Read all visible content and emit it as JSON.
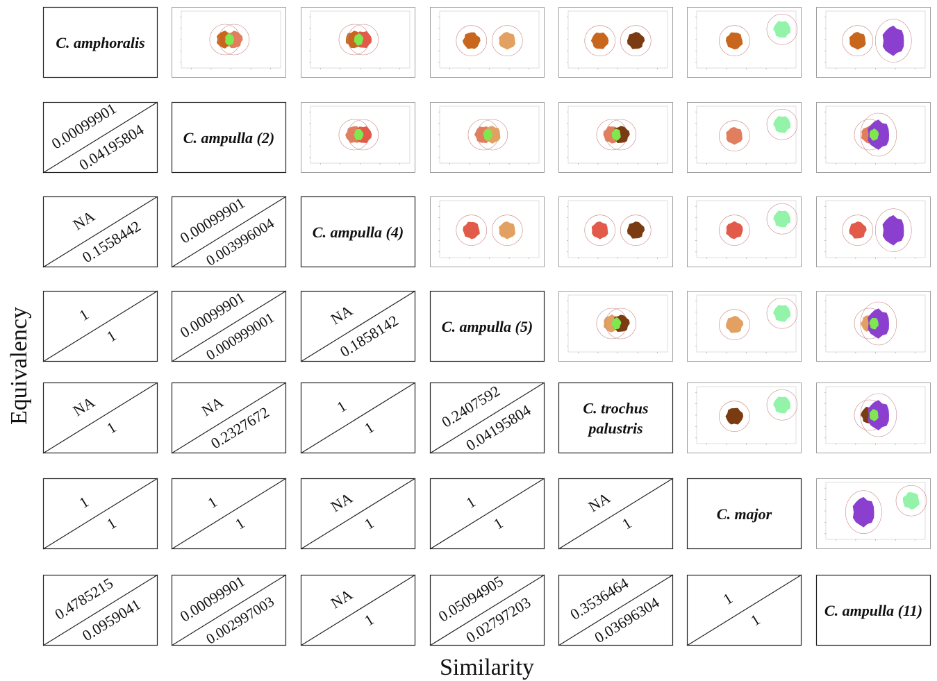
{
  "axes": {
    "y_label": "Equivalency",
    "x_label": "Similarity"
  },
  "chart_data": {
    "type": "table",
    "layout": "pairwise matrix: species names on the diagonal, niche-overlap plots in the upper triangle, equivalency/similarity values in the lower triangle",
    "species": [
      [
        "C. amphoralis"
      ],
      [
        "C. ampulla (2)"
      ],
      [
        "C. ampulla (4)"
      ],
      [
        "C. ampulla (5)"
      ],
      [
        "C. trochus",
        "palustris"
      ],
      [
        "C. major"
      ],
      [
        "C. ampulla (11)"
      ]
    ],
    "colors": {
      "species": [
        "#c8661e",
        "#e07e5e",
        "#e25a4a",
        "#e2a062",
        "#7a3b12",
        "#93f3a8",
        "#8a3fcf"
      ],
      "overlap": "#7ee84e"
    },
    "pairs": [
      {
        "row": 1,
        "col": 0,
        "equivalency": "0.00099901",
        "similarity": "0.04195804"
      },
      {
        "row": 2,
        "col": 0,
        "equivalency": "NA",
        "similarity": "0.1558442"
      },
      {
        "row": 2,
        "col": 1,
        "equivalency": "0.00099901",
        "similarity": "0.003996004"
      },
      {
        "row": 3,
        "col": 0,
        "equivalency": "1",
        "similarity": "1"
      },
      {
        "row": 3,
        "col": 1,
        "equivalency": "0.00099901",
        "similarity": "0.000999001"
      },
      {
        "row": 3,
        "col": 2,
        "equivalency": "NA",
        "similarity": "0.1858142"
      },
      {
        "row": 4,
        "col": 0,
        "equivalency": "NA",
        "similarity": "1"
      },
      {
        "row": 4,
        "col": 1,
        "equivalency": "NA",
        "similarity": "0.2327672"
      },
      {
        "row": 4,
        "col": 2,
        "equivalency": "1",
        "similarity": "1"
      },
      {
        "row": 4,
        "col": 3,
        "equivalency": "0.2407592",
        "similarity": "0.04195804"
      },
      {
        "row": 5,
        "col": 0,
        "equivalency": "1",
        "similarity": "1"
      },
      {
        "row": 5,
        "col": 1,
        "equivalency": "1",
        "similarity": "1"
      },
      {
        "row": 5,
        "col": 2,
        "equivalency": "NA",
        "similarity": "1"
      },
      {
        "row": 5,
        "col": 3,
        "equivalency": "1",
        "similarity": "1"
      },
      {
        "row": 5,
        "col": 4,
        "equivalency": "NA",
        "similarity": "1"
      },
      {
        "row": 6,
        "col": 0,
        "equivalency": "0.4785215",
        "similarity": "0.0959041"
      },
      {
        "row": 6,
        "col": 1,
        "equivalency": "0.00099901",
        "similarity": "0.002997003"
      },
      {
        "row": 6,
        "col": 2,
        "equivalency": "NA",
        "similarity": "1"
      },
      {
        "row": 6,
        "col": 3,
        "equivalency": "0.05094905",
        "similarity": "0.02797203"
      },
      {
        "row": 6,
        "col": 4,
        "equivalency": "0.3536464",
        "similarity": "0.03696304"
      },
      {
        "row": 6,
        "col": 5,
        "equivalency": "1",
        "similarity": "1"
      }
    ],
    "overlap_plots": [
      {
        "row": 0,
        "col": 1,
        "overlap": true
      },
      {
        "row": 0,
        "col": 2,
        "overlap": true
      },
      {
        "row": 0,
        "col": 3,
        "overlap": false
      },
      {
        "row": 0,
        "col": 4,
        "overlap": false
      },
      {
        "row": 0,
        "col": 5,
        "overlap": false
      },
      {
        "row": 0,
        "col": 6,
        "overlap": false
      },
      {
        "row": 1,
        "col": 2,
        "overlap": true
      },
      {
        "row": 1,
        "col": 3,
        "overlap": true
      },
      {
        "row": 1,
        "col": 4,
        "overlap": true
      },
      {
        "row": 1,
        "col": 5,
        "overlap": false
      },
      {
        "row": 1,
        "col": 6,
        "overlap": true
      },
      {
        "row": 2,
        "col": 3,
        "overlap": false
      },
      {
        "row": 2,
        "col": 4,
        "overlap": false
      },
      {
        "row": 2,
        "col": 5,
        "overlap": false
      },
      {
        "row": 2,
        "col": 6,
        "overlap": false
      },
      {
        "row": 3,
        "col": 4,
        "overlap": true
      },
      {
        "row": 3,
        "col": 5,
        "overlap": false
      },
      {
        "row": 3,
        "col": 6,
        "overlap": true
      },
      {
        "row": 4,
        "col": 5,
        "overlap": false
      },
      {
        "row": 4,
        "col": 6,
        "overlap": true
      },
      {
        "row": 5,
        "col": 6,
        "overlap": false
      }
    ]
  }
}
